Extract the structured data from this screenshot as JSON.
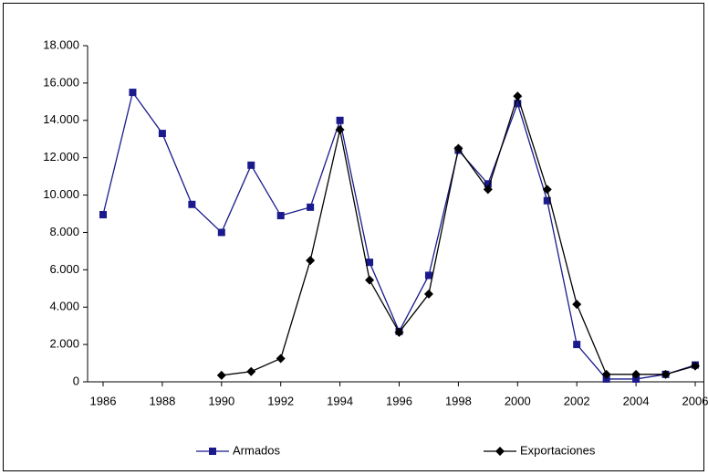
{
  "chart_data": {
    "type": "line",
    "x": [
      1986,
      1987,
      1988,
      1989,
      1990,
      1991,
      1992,
      1993,
      1994,
      1995,
      1996,
      1997,
      1998,
      1999,
      2000,
      2001,
      2002,
      2003,
      2004,
      2005,
      2006
    ],
    "series": [
      {
        "name": "Armados",
        "color": "#1a1a8c",
        "marker": "square",
        "values": [
          8950,
          15500,
          13300,
          9500,
          8000,
          11600,
          8900,
          9350,
          14000,
          6400,
          2700,
          5700,
          12400,
          10600,
          14900,
          9700,
          2000,
          150,
          150,
          400,
          900
        ]
      },
      {
        "name": "Exportaciones",
        "color": "#000000",
        "marker": "diamond",
        "values": [
          null,
          null,
          null,
          null,
          350,
          550,
          1250,
          6500,
          13500,
          5450,
          2650,
          4700,
          12500,
          10300,
          15300,
          10300,
          4150,
          400,
          400,
          400,
          850
        ]
      }
    ],
    "xlim": [
      1986,
      2006
    ],
    "xticks": [
      1986,
      1988,
      1990,
      1992,
      1994,
      1996,
      1998,
      2000,
      2002,
      2004,
      2006
    ],
    "ylim": [
      0,
      18000
    ],
    "yticks": [
      {
        "value": 0,
        "label": "0"
      },
      {
        "value": 2000,
        "label": "2.000"
      },
      {
        "value": 4000,
        "label": "4.000"
      },
      {
        "value": 6000,
        "label": "6.000"
      },
      {
        "value": 8000,
        "label": "8.000"
      },
      {
        "value": 10000,
        "label": "10.000"
      },
      {
        "value": 12000,
        "label": "12.000"
      },
      {
        "value": 14000,
        "label": "14.000"
      },
      {
        "value": 16000,
        "label": "16.000"
      },
      {
        "value": 18000,
        "label": "18.000"
      }
    ],
    "grid": false,
    "legend": "bottom"
  }
}
